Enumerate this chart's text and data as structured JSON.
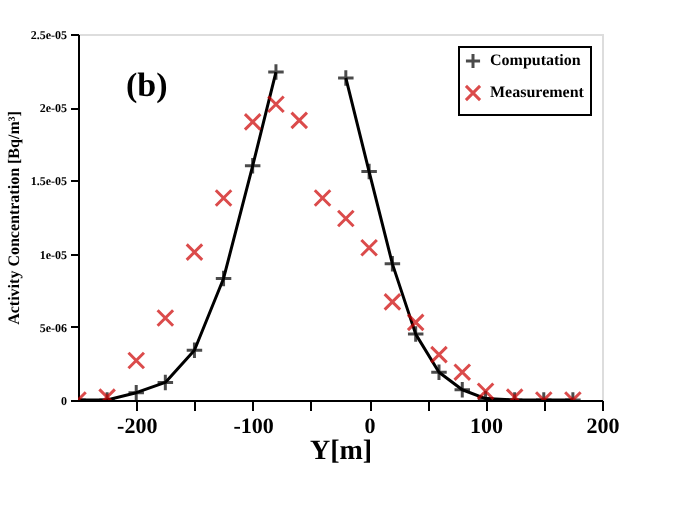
{
  "chart_data": {
    "type": "line",
    "xlabel": "Y[m]",
    "ylabel": "Activity Concentration [Bq/m³]",
    "annotations": [
      "(b)"
    ],
    "x": [
      -250,
      -225,
      -200,
      -175,
      -150,
      -125,
      -100,
      -80,
      -60,
      -40,
      -20,
      0,
      20,
      40,
      60,
      80,
      100,
      125,
      150,
      175
    ],
    "series": [
      {
        "name": "Computation",
        "type": "line",
        "color": "#000000",
        "marker": "cross",
        "values": [
          0,
          0,
          5e-07,
          1.2e-06,
          3.4e-06,
          8.3e-06,
          1.6e-05,
          2.24e-05,
          null,
          null,
          2.2e-05,
          1.56e-05,
          9.3e-06,
          4.5e-06,
          1.9e-06,
          7e-07,
          1e-07,
          0,
          0,
          0
        ]
      },
      {
        "name": "Measurement",
        "type": "scatter",
        "color": "#cc0000",
        "marker": "cross",
        "values": [
          0,
          2e-07,
          2.7e-06,
          5.6e-06,
          1.01e-05,
          1.38e-05,
          1.9e-05,
          2.02e-05,
          1.91e-05,
          1.38e-05,
          1.24e-05,
          1.04e-05,
          6.7e-06,
          5.3e-06,
          3.1e-06,
          1.9e-06,
          6e-07,
          2e-07,
          0,
          0
        ]
      }
    ],
    "xlim": [
      -250,
      200
    ],
    "xticks": [
      -200,
      {
        "value": -150,
        "label": null
      },
      -100,
      {
        "value": -50,
        "label": null
      },
      0,
      {
        "value": 50,
        "label": null
      },
      100,
      {
        "value": 150,
        "label": null
      },
      200
    ],
    "ylim": [
      0,
      2.5e-05
    ],
    "yticks": [
      0,
      {
        "value": 5e-06,
        "label": "5e-06"
      },
      {
        "value": 1e-05,
        "label": "1e-05"
      },
      {
        "value": 1.5e-05,
        "label": "1.5e-05"
      },
      {
        "value": 2e-05,
        "label": "2e-05"
      },
      {
        "value": 2.5e-05,
        "label": "2.5e-05"
      }
    ],
    "grid": false,
    "legend": "top right"
  }
}
